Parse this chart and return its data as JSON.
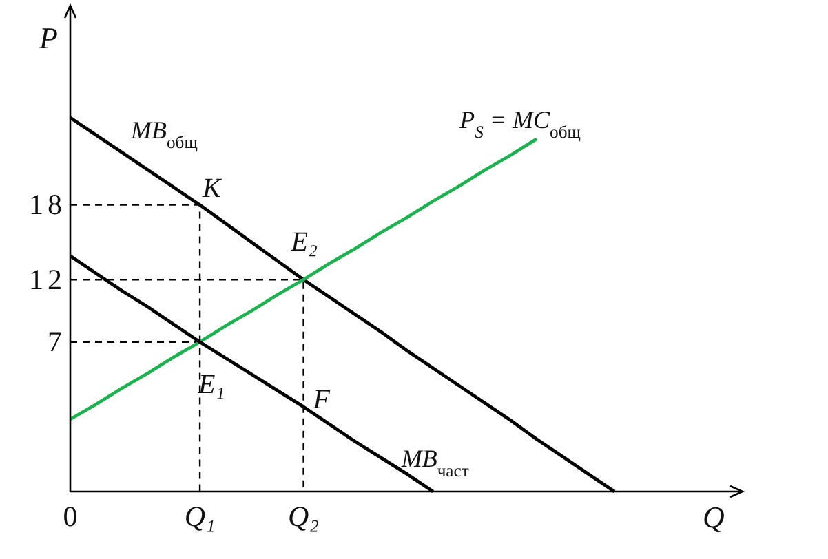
{
  "chart_data": {
    "type": "line",
    "xlabel": "Q",
    "ylabel": "P",
    "categories": [
      "0",
      null,
      null,
      null,
      null,
      "Q₁",
      null,
      null,
      null,
      "Q₂",
      null,
      null,
      null,
      null,
      null,
      null,
      null,
      null,
      null,
      null,
      null,
      null
    ],
    "ylim": [
      -5,
      34
    ],
    "yticks": [
      7,
      12,
      18
    ],
    "series": [
      {
        "color": "#000000",
        "line_style": "dashed",
        "x": [
          "0",
          "Q₁",
          "Q₁"
        ],
        "values": [
          18,
          18,
          -5
        ]
      },
      {
        "color": "#000000",
        "line_style": "dashed",
        "x": [
          "0",
          "Q₂",
          "Q₂"
        ],
        "values": [
          12,
          12,
          -5
        ]
      },
      {
        "color": "#000000",
        "line_style": "dashed",
        "x": [
          "0",
          "Q₁"
        ],
        "values": [
          7,
          7
        ]
      },
      {
        "name": "MB$_{общ}$",
        "color": "#000000",
        "values": [
          25.0,
          23.6,
          22.2,
          20.8,
          19.4,
          18,
          16.5,
          15,
          13.5,
          12,
          10.6,
          9.2,
          7.8,
          6.3,
          4.9,
          3.5,
          2.1,
          0.7,
          -0.8,
          -2.2,
          -3.6,
          -5
        ]
      },
      {
        "name": "P$_{S}$ = MC$_{общ}$",
        "color": "#1fb04f",
        "values": [
          0.8,
          2,
          3.3,
          4.5,
          5.8,
          7,
          8.3,
          9.5,
          10.8,
          12,
          13.3,
          14.5,
          15.8,
          17,
          18.3,
          19.5,
          20.8,
          22,
          23.3,
          null,
          null,
          null
        ]
      },
      {
        "name": "MB$_{част}$",
        "color": "#000000",
        "values": [
          13.9,
          12.5,
          11.1,
          9.8,
          8.4,
          7,
          5.7,
          4.4,
          3.1,
          1.8,
          0.4,
          -1.0,
          -2.3,
          -3.6,
          -5,
          null,
          null,
          null,
          null,
          null,
          null,
          null
        ]
      }
    ],
    "annotations": [
      {
        "text": "K",
        "x": "Q₁",
        "y": 18
      },
      {
        "text": "E₂",
        "x": "Q₂",
        "y": 12
      },
      {
        "text": "E₁",
        "x": "Q₁",
        "y": 7
      },
      {
        "text": "F",
        "x": "Q₂",
        "y": 1.8
      }
    ]
  }
}
